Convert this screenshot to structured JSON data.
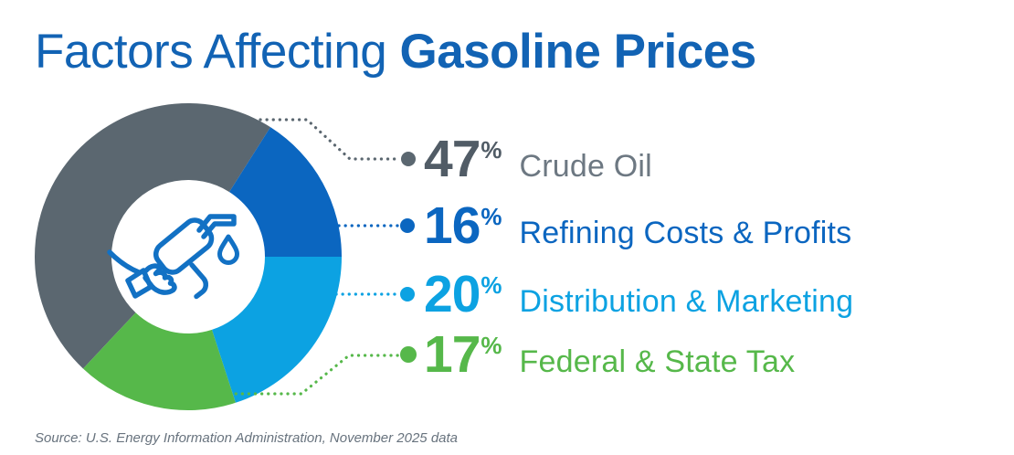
{
  "title": {
    "regular": "Factors Affecting ",
    "bold": "Gasoline Prices"
  },
  "colors": {
    "title_blue": "#1263b4",
    "crude_gray": "#5b6770",
    "crude_number": "#515c66",
    "crude_label": "#6d7882",
    "refining_blue": "#0b66c0",
    "distribution_blue": "#0ca2e2",
    "tax_green": "#56b84a",
    "icon_stroke": "#1271c4",
    "source_gray": "#68737e",
    "background": "#ffffff"
  },
  "chart_data": {
    "type": "pie",
    "subtype": "donut",
    "title": "Factors Affecting Gasoline Prices",
    "categories": [
      "Crude Oil",
      "Refining Costs & Profits",
      "Distribution & Marketing",
      "Federal & State Tax"
    ],
    "values": [
      47,
      16,
      20,
      17
    ],
    "unit": "%",
    "colors": [
      "#5b6770",
      "#0b66c0",
      "#0ca2e2",
      "#56b84a"
    ],
    "start_angle_deg": 223.2,
    "direction": "clockwise",
    "legend_position": "right",
    "center_icon": "gas-pump-nozzle",
    "donut_hole_ratio": 0.5,
    "source": "Source: U.S. Energy Information Administration, November 2025 data"
  },
  "legend": [
    {
      "value": "47",
      "unit": "%",
      "label": "Crude Oil",
      "number_color": "#515c66",
      "label_color": "#6d7882"
    },
    {
      "value": "16",
      "unit": "%",
      "label": "Refining Costs & Profits",
      "number_color": "#0b66c0",
      "label_color": "#0b66c0"
    },
    {
      "value": "20",
      "unit": "%",
      "label": "Distribution & Marketing",
      "number_color": "#0ca2e2",
      "label_color": "#0ca2e2"
    },
    {
      "value": "17",
      "unit": "%",
      "label": "Federal & State Tax",
      "number_color": "#56b84a",
      "label_color": "#56b84a"
    }
  ],
  "source": "Source: U.S. Energy Information Administration, November 2025 data"
}
